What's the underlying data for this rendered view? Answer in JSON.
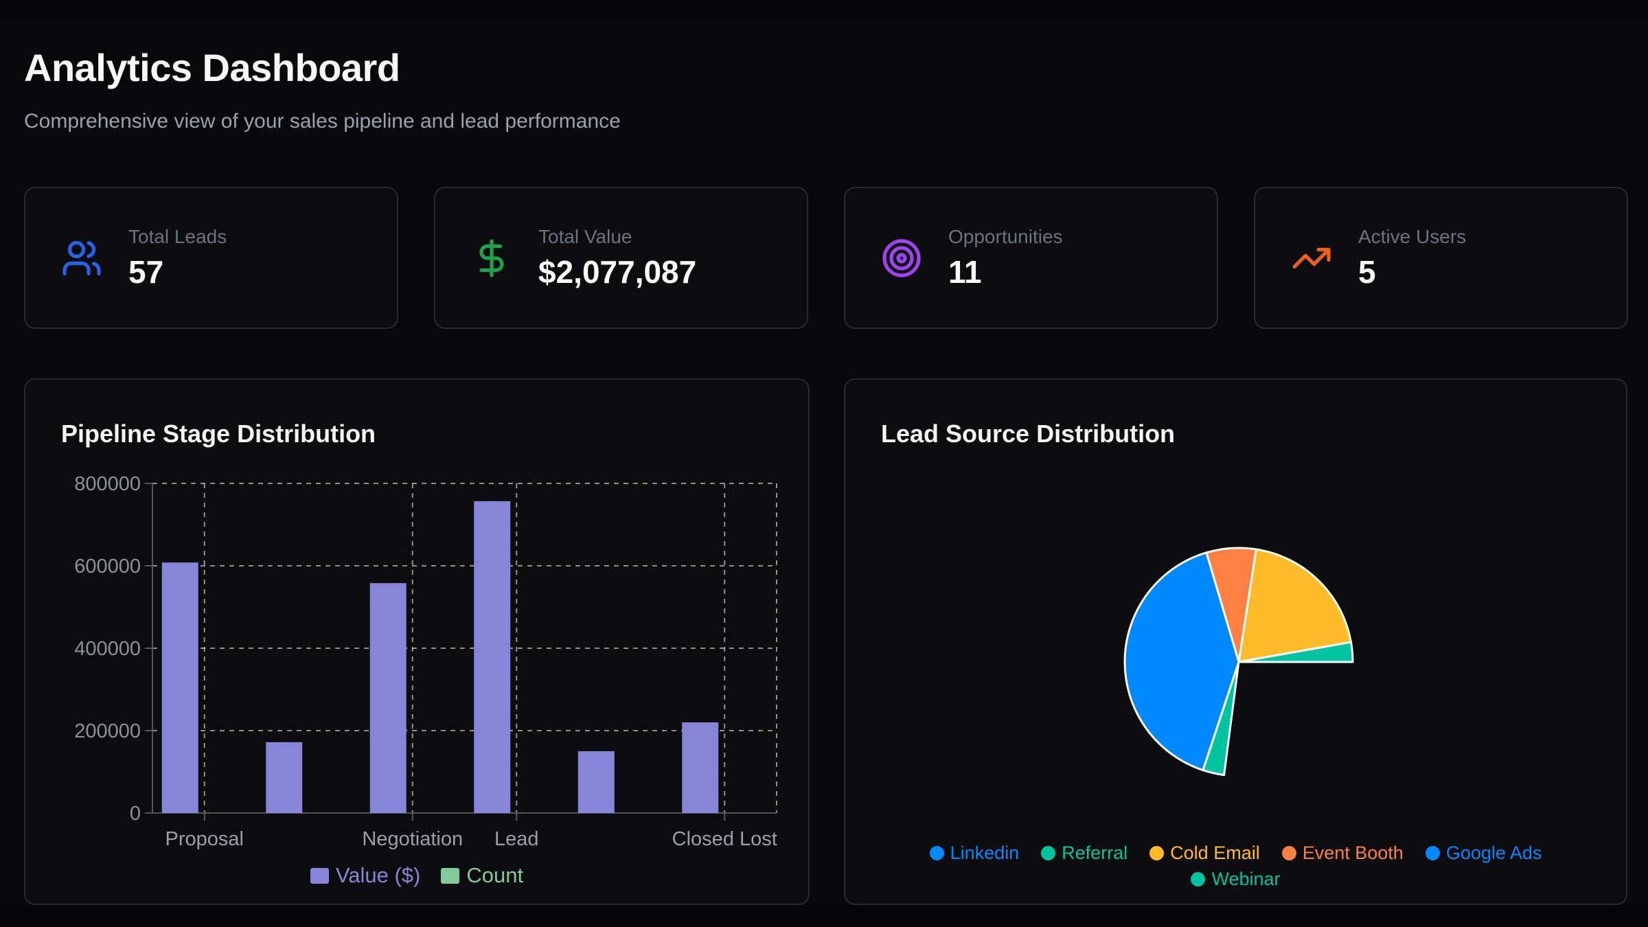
{
  "page": {
    "title": "Analytics Dashboard",
    "subtitle": "Comprehensive view of your sales pipeline and lead performance",
    "background": "#09090b"
  },
  "stats": [
    {
      "label": "Total Leads",
      "value": "57",
      "icon": "users-icon",
      "icon_color": "#2563eb"
    },
    {
      "label": "Total Value",
      "value": "$2,077,087",
      "icon": "dollar-sign-icon",
      "icon_color": "#1fa24a"
    },
    {
      "label": "Opportunities",
      "value": "11",
      "icon": "target-icon",
      "icon_color": "#9d44f0"
    },
    {
      "label": "Active Users",
      "value": "5",
      "icon": "trending-up-icon",
      "icon_color": "#e9611b"
    }
  ],
  "chart_data": [
    {
      "id": "pipeline-stage-distribution",
      "type": "bar",
      "title": "Pipeline Stage Distribution",
      "categories": [
        "Proposal",
        "",
        "Negotiation",
        "Lead",
        "",
        "Closed Lost"
      ],
      "visible_tick_labels": [
        "Proposal",
        "Negotiation",
        "Lead",
        "Closed Lost"
      ],
      "series": [
        {
          "name": "Value ($)",
          "color": "#8884d8",
          "values": [
            608000,
            172000,
            558000,
            757000,
            150000,
            220000
          ]
        },
        {
          "name": "Count",
          "color": "#82ca9d",
          "values": [
            0,
            0,
            0,
            0,
            0,
            0
          ],
          "note": "count bars too small to be visible at this axis scale"
        }
      ],
      "xlabel": "",
      "ylabel": "",
      "ylim": [
        0,
        800000
      ],
      "yticks": [
        0,
        200000,
        400000,
        600000,
        800000
      ],
      "grid": "dashed",
      "legend_position": "bottom"
    },
    {
      "id": "lead-source-distribution",
      "type": "pie",
      "title": "Lead Source Distribution",
      "segments": [
        {
          "name": "Event Booth",
          "color": "#FF8042",
          "start_deg": -16.5,
          "end_deg": 8.8,
          "pct": 7.0
        },
        {
          "name": "Cold Email",
          "color": "#FFBB28",
          "start_deg": 8.8,
          "end_deg": 80.0,
          "pct": 19.8
        },
        {
          "name": "Referral",
          "color": "#00C49F",
          "start_deg": 80.0,
          "end_deg": 90.0,
          "pct": 2.8
        },
        {
          "name": "Webinar",
          "color": "#00C49F",
          "start_deg": 187.4,
          "end_deg": 198.3,
          "pct": 3.0
        },
        {
          "name": "Linkedin",
          "color": "#0088FE",
          "start_deg": 198.3,
          "end_deg": 343.5,
          "pct": 40.3
        }
      ],
      "unrendered_gap_deg": [
        90.0,
        187.4
      ],
      "legend": [
        {
          "label": "Linkedin",
          "color": "#0088FE"
        },
        {
          "label": "Referral",
          "color": "#00C49F"
        },
        {
          "label": "Cold Email",
          "color": "#FFBB28"
        },
        {
          "label": "Event Booth",
          "color": "#FF8042"
        },
        {
          "label": "Google Ads",
          "color": "#0088FE"
        },
        {
          "label": "Webinar",
          "color": "#00C49F"
        }
      ],
      "legend_rows": [
        5,
        1
      ],
      "legend_position": "bottom"
    }
  ]
}
